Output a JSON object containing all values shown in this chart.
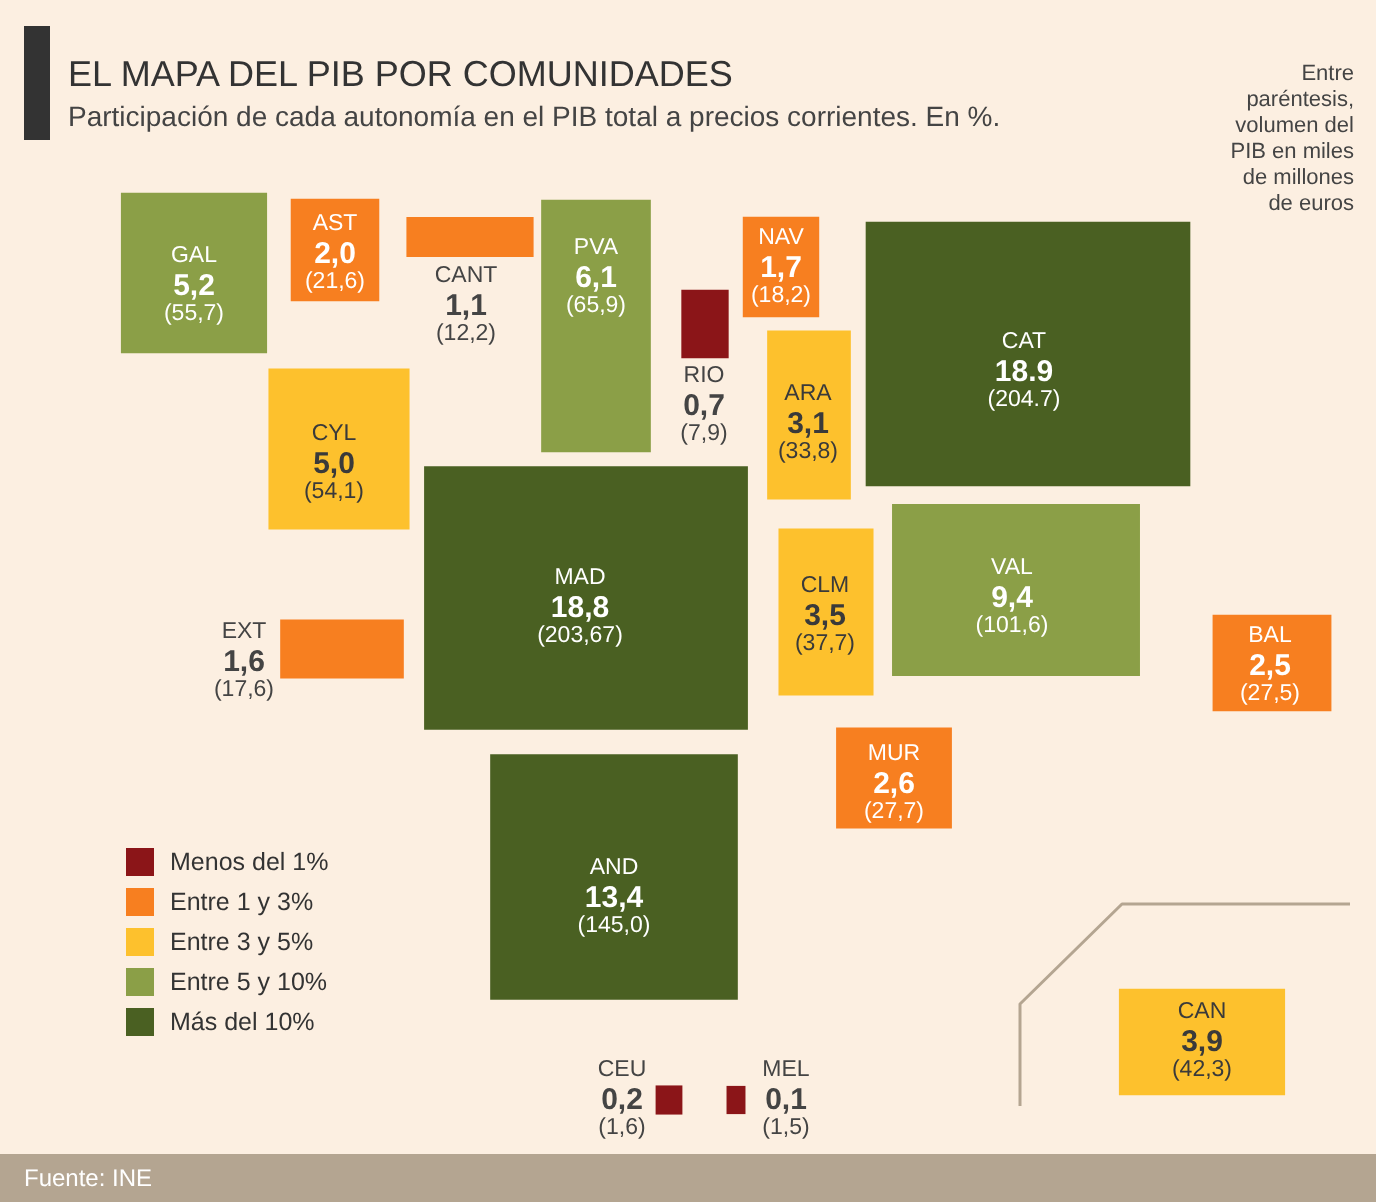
{
  "chart_data": {
    "type": "other",
    "title": "EL MAPA DEL PIB POR COMUNIDADES",
    "subtitle": "Participación de cada autonomía en el PIB total a precios corrientes. En %.",
    "categories": [
      "GAL",
      "AST",
      "CANT",
      "PVA",
      "NAV",
      "RIO",
      "CAT",
      "CYL",
      "ARA",
      "MAD",
      "EXT",
      "CLM",
      "VAL",
      "BAL",
      "MUR",
      "AND",
      "CAN",
      "CEU",
      "MEL"
    ],
    "series": [
      {
        "name": "Menos del 1%",
        "color": "#8b1518",
        "values": [
          null,
          null,
          null,
          null,
          null,
          0.7,
          null,
          null,
          null,
          null,
          null,
          null,
          null,
          null,
          null,
          null,
          null,
          0.2,
          0.1
        ],
        "value_labels": [
          null,
          null,
          null,
          null,
          null,
          "0,7",
          null,
          null,
          null,
          null,
          null,
          null,
          null,
          null,
          null,
          null,
          null,
          "0,2",
          "0,1"
        ]
      },
      {
        "name": "Entre 1 y 3%",
        "color": "#f77f20",
        "values": [
          null,
          2.0,
          1.1,
          null,
          1.7,
          null,
          null,
          null,
          null,
          null,
          1.6,
          null,
          null,
          2.5,
          2.6,
          null,
          null,
          null,
          null
        ],
        "value_labels": [
          null,
          "2,0",
          "1,1",
          null,
          "1,7",
          null,
          null,
          null,
          null,
          null,
          "1,6",
          null,
          null,
          "2,5",
          "2,6",
          null,
          null,
          null,
          null
        ]
      },
      {
        "name": "Entre 3 y 5%",
        "color": "#fdc12d",
        "values": [
          null,
          null,
          null,
          null,
          null,
          null,
          null,
          5.0,
          3.1,
          null,
          null,
          3.5,
          null,
          null,
          null,
          null,
          3.9,
          null,
          null
        ],
        "value_labels": [
          null,
          null,
          null,
          null,
          null,
          null,
          null,
          "5,0",
          "3,1",
          null,
          null,
          "3,5",
          null,
          null,
          null,
          null,
          "3,9",
          null,
          null
        ]
      },
      {
        "name": "Entre 5 y 10%",
        "color": "#8b9f47",
        "values": [
          5.2,
          null,
          null,
          6.1,
          null,
          null,
          null,
          null,
          null,
          null,
          null,
          null,
          9.4,
          null,
          null,
          null,
          null,
          null,
          null
        ],
        "value_labels": [
          "5,2",
          null,
          null,
          "6,1",
          null,
          null,
          null,
          null,
          null,
          null,
          null,
          null,
          "9,4",
          null,
          null,
          null,
          null,
          null,
          null
        ]
      },
      {
        "name": "Más del 10%",
        "color": "#4a6022",
        "values": [
          null,
          null,
          null,
          null,
          null,
          null,
          18.9,
          null,
          null,
          18.8,
          null,
          null,
          null,
          null,
          null,
          13.4,
          null,
          null,
          null
        ],
        "value_labels": [
          null,
          null,
          null,
          null,
          null,
          null,
          "18.9",
          null,
          null,
          "18,8",
          null,
          null,
          null,
          null,
          null,
          "13,4",
          null,
          null,
          null
        ]
      },
      {
        "values": [
          55.7,
          21.6,
          12.2,
          65.9,
          18.2,
          7.9,
          204.7,
          54.1,
          33.8,
          203.67,
          17.6,
          37.7,
          101.6,
          27.5,
          27.7,
          145.0,
          42.3,
          1.6,
          1.5
        ],
        "value_labels": [
          "(55,7)",
          "(21,6)",
          "(12,2)",
          "(65,9)",
          "(18,2)",
          "(7,9)",
          "(204.7)",
          "(54,1)",
          "(33,8)",
          "(203,67)",
          "(17,6)",
          "(37,7)",
          "(101,6)",
          "(27,5)",
          "(27,7)",
          "(145,0)",
          "(42,3)",
          "(1,6)",
          "(1,5)"
        ]
      }
    ],
    "legend": "bottom left",
    "annotations": [
      "Entre paréntesis, volumen del PIB en miles de millones de euros",
      "Fuente: INE"
    ]
  }
}
